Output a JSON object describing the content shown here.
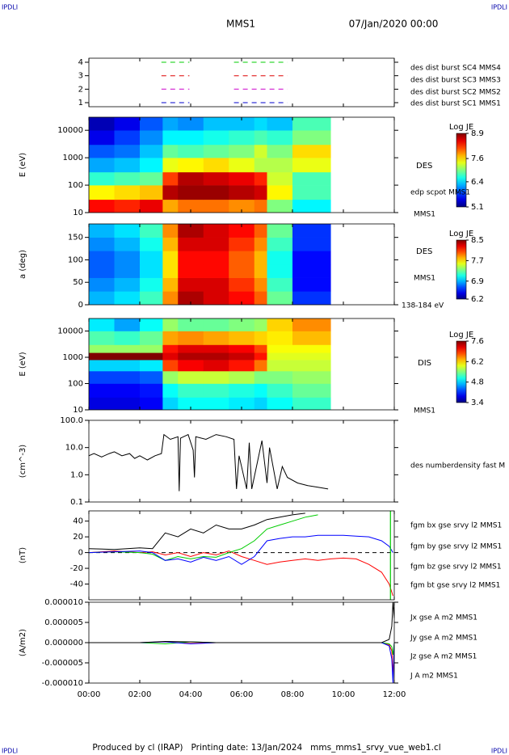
{
  "header": {
    "left_tag": "IPDLI",
    "right_tag": "IPDLI",
    "title": "MMS1",
    "date": "07/Jan/2020 00:00"
  },
  "footer": {
    "left_tag": "IPDLI",
    "right_tag": "IPDLI",
    "text": "Produced by cl (IRAP)   Printing date: 13/Jan/2024   mms_mms1_srvy_vue_web1.cl"
  },
  "chart_data": [
    {
      "type": "line",
      "dashed": true,
      "ylim": [
        0.7,
        4.3
      ],
      "yticks": [
        1,
        2,
        3,
        4
      ],
      "x": [
        2.85,
        3.95,
        4.5,
        5.7,
        7.8
      ],
      "series": [
        {
          "name": "des dist burst SC1 MMS1",
          "color": "#0000cc",
          "values": [
            1,
            1,
            null,
            1,
            1
          ]
        },
        {
          "name": "des dist burst SC2 MMS2",
          "color": "#cc00cc",
          "values": [
            2,
            2,
            null,
            2,
            2
          ]
        },
        {
          "name": "des dist burst SC3 MMS3",
          "color": "#dd0000",
          "values": [
            3,
            3,
            null,
            3,
            3
          ]
        },
        {
          "name": "des dist burst SC4 MMS4",
          "color": "#00cc00",
          "values": [
            4,
            4,
            null,
            4,
            4
          ]
        }
      ]
    },
    {
      "type": "heatmap",
      "ylabel": "E (eV)",
      "log_y": true,
      "ylim": [
        10,
        30000
      ],
      "yticks": [
        10,
        100,
        1000,
        10000
      ],
      "labels": [
        "DES",
        "edp scpot MMS1",
        "MMS1"
      ],
      "colorbar": {
        "title": "Log JE",
        "lim": [
          5.1,
          8.9
        ],
        "ticks": [
          5.1,
          6.4,
          7.6,
          8.9
        ]
      },
      "x_edges": [
        0,
        1,
        2,
        2.9,
        3.5,
        4.5,
        5.5,
        6.5,
        7,
        8,
        9.5
      ],
      "y_edges": [
        10,
        30,
        100,
        300,
        1000,
        3000,
        10000,
        30000
      ],
      "z": [
        [
          8.4,
          8.3,
          8.5,
          7.8,
          8.0,
          8.0,
          7.9,
          8.0,
          7.0,
          6.5
        ],
        [
          7.5,
          7.6,
          7.7,
          8.7,
          8.8,
          8.8,
          8.7,
          8.6,
          7.5,
          6.8
        ],
        [
          6.7,
          6.8,
          6.9,
          8.2,
          8.7,
          8.6,
          8.5,
          8.3,
          7.3,
          6.8
        ],
        [
          6.2,
          6.3,
          6.5,
          7.4,
          7.5,
          7.6,
          7.4,
          7.2,
          7.2,
          7.4
        ],
        [
          5.9,
          6.0,
          6.3,
          6.9,
          6.8,
          6.9,
          7.0,
          7.3,
          7.0,
          7.6
        ],
        [
          5.5,
          5.8,
          6.1,
          6.5,
          6.5,
          6.6,
          6.7,
          6.8,
          6.7,
          7.0
        ],
        [
          5.3,
          5.5,
          5.9,
          6.2,
          6.1,
          6.3,
          6.3,
          6.4,
          6.3,
          6.8
        ]
      ]
    },
    {
      "type": "heatmap",
      "ylabel": "a (deg)",
      "log_y": false,
      "ylim": [
        0,
        180
      ],
      "yticks": [
        0,
        50,
        100,
        150
      ],
      "labels": [
        "DES",
        "MMS1",
        "138-184 eV"
      ],
      "colorbar": {
        "title": "Log JE",
        "lim": [
          6.2,
          8.5
        ],
        "ticks": [
          6.2,
          6.9,
          7.7,
          8.5
        ]
      },
      "x_edges": [
        0,
        1,
        2,
        2.9,
        3.5,
        4.5,
        5.5,
        6.5,
        7,
        8,
        9.5
      ],
      "y_edges": [
        0,
        30,
        60,
        90,
        120,
        150,
        180
      ],
      "z": [
        [
          6.9,
          7.0,
          7.2,
          7.9,
          8.4,
          8.3,
          8.2,
          8.0,
          7.3,
          6.6
        ],
        [
          6.8,
          6.9,
          7.1,
          7.8,
          8.3,
          8.3,
          8.1,
          7.9,
          7.2,
          6.5
        ],
        [
          6.7,
          6.8,
          7.0,
          7.7,
          8.2,
          8.2,
          8.0,
          7.8,
          7.1,
          6.5
        ],
        [
          6.7,
          6.8,
          7.0,
          7.7,
          8.2,
          8.2,
          8.0,
          7.8,
          7.1,
          6.5
        ],
        [
          6.8,
          6.9,
          7.1,
          7.8,
          8.3,
          8.3,
          8.1,
          7.9,
          7.2,
          6.6
        ],
        [
          6.9,
          7.0,
          7.2,
          7.9,
          8.4,
          8.3,
          8.2,
          8.0,
          7.3,
          6.6
        ]
      ]
    },
    {
      "type": "heatmap",
      "ylabel": "E (eV)",
      "log_y": true,
      "ylim": [
        10,
        30000
      ],
      "yticks": [
        10,
        100,
        1000,
        10000
      ],
      "labels": [
        "DIS",
        "MMS1"
      ],
      "colorbar": {
        "title": "Log JE",
        "lim": [
          3.4,
          7.6
        ],
        "ticks": [
          3.4,
          4.8,
          6.2,
          7.6
        ]
      },
      "x_edges": [
        0,
        1,
        2,
        2.9,
        3.5,
        4.5,
        5.5,
        6.5,
        7,
        8,
        9.5
      ],
      "y_edges": [
        10,
        30,
        100,
        300,
        800,
        1500,
        3000,
        10000,
        30000
      ],
      "z": [
        [
          3.8,
          3.8,
          3.9,
          4.8,
          5.0,
          5.0,
          4.9,
          4.8,
          5.0,
          5.2
        ],
        [
          3.9,
          3.9,
          4.0,
          5.0,
          5.2,
          5.2,
          5.1,
          5.0,
          5.2,
          5.4
        ],
        [
          4.2,
          4.2,
          4.3,
          5.6,
          5.8,
          5.8,
          5.7,
          5.5,
          5.5,
          5.6
        ],
        [
          4.8,
          4.8,
          4.9,
          6.8,
          7.1,
          7.2,
          7.0,
          6.6,
          5.8,
          5.8
        ],
        [
          7.6,
          7.6,
          7.6,
          7.2,
          7.4,
          7.4,
          7.3,
          7.0,
          5.9,
          5.9
        ],
        [
          5.6,
          5.6,
          5.6,
          7.0,
          7.2,
          7.2,
          7.1,
          6.8,
          6.0,
          6.0
        ],
        [
          5.3,
          5.2,
          5.4,
          6.4,
          6.5,
          6.4,
          6.3,
          6.2,
          6.1,
          6.3
        ],
        [
          4.9,
          4.6,
          5.0,
          5.6,
          5.4,
          5.4,
          5.5,
          5.6,
          6.2,
          6.5
        ]
      ]
    },
    {
      "type": "line",
      "ylabel": "(cm^-3)",
      "log_y": true,
      "ylim": [
        0.1,
        100
      ],
      "yticks": [
        0.1,
        {
          "value": 1,
          "label": "1.0"
        },
        {
          "value": 10,
          "label": "10.0"
        },
        {
          "value": 100,
          "label": "100.0"
        }
      ],
      "x": [
        0,
        0.2,
        0.5,
        0.8,
        1.0,
        1.3,
        1.6,
        1.8,
        2.0,
        2.3,
        2.6,
        2.85,
        2.95,
        3.2,
        3.5,
        3.55,
        3.6,
        3.9,
        4.1,
        4.15,
        4.2,
        4.6,
        5.0,
        5.4,
        5.7,
        5.8,
        5.9,
        6.2,
        6.3,
        6.4,
        6.8,
        7.0,
        7.1,
        7.4,
        7.6,
        7.8,
        8.2,
        8.6,
        9.0,
        9.4
      ],
      "series": [
        {
          "name": "des numberdensity fast M",
          "color": "#000000",
          "values": [
            5,
            6,
            4.5,
            6,
            7,
            5,
            6,
            4,
            5,
            3.5,
            5,
            6,
            30,
            20,
            25,
            0.25,
            22,
            30,
            8,
            0.8,
            25,
            20,
            30,
            25,
            20,
            0.3,
            5,
            0.3,
            15,
            0.3,
            18,
            0.5,
            10,
            0.3,
            2,
            0.8,
            0.5,
            0.4,
            0.35,
            0.3
          ]
        }
      ]
    },
    {
      "type": "line",
      "ylabel": "(nT)",
      "zero_line": true,
      "ylim": [
        -60,
        53
      ],
      "yticks": [
        -40,
        -20,
        0,
        20,
        40
      ],
      "vline": {
        "x": 11.85,
        "color": "#00cc00"
      },
      "x": [
        0,
        1,
        2,
        2.5,
        3,
        3.5,
        4,
        4.5,
        5,
        5.5,
        6,
        6.5,
        7,
        7.5,
        8,
        8.5,
        9,
        9.5,
        10,
        10.5,
        11,
        11.5,
        11.8,
        11.95
      ],
      "series": [
        {
          "name": "fgm bx gse srvy l2 MMS1",
          "color": "#ff0000",
          "values": [
            0,
            2,
            0,
            1,
            -3,
            0,
            -5,
            0,
            -3,
            2,
            -5,
            -10,
            -15,
            -12,
            -10,
            -8,
            -10,
            -8,
            -7,
            -8,
            -15,
            -25,
            -40,
            -55
          ]
        },
        {
          "name": "fgm by gse srvy l2 MMS1",
          "color": "#00cc00",
          "values": [
            0,
            1,
            0,
            -2,
            -10,
            -5,
            -8,
            -5,
            -6,
            0,
            5,
            15,
            30,
            35,
            40,
            45,
            48,
            null,
            null,
            null,
            null,
            null,
            null,
            null
          ]
        },
        {
          "name": "fgm bz gse srvy l2 MMS1",
          "color": "#0000ff",
          "values": [
            0,
            1,
            2,
            0,
            -10,
            -8,
            -12,
            -6,
            -10,
            -5,
            -15,
            -5,
            15,
            18,
            20,
            20,
            22,
            22,
            22,
            21,
            20,
            15,
            8,
            0
          ]
        },
        {
          "name": "fgm bt gse srvy l2 MMS1",
          "color": "#000000",
          "values": [
            5,
            4,
            6,
            5,
            25,
            20,
            30,
            25,
            35,
            30,
            30,
            35,
            42,
            45,
            48,
            50,
            null,
            null,
            null,
            null,
            null,
            null,
            null,
            null
          ]
        }
      ]
    },
    {
      "type": "line",
      "ylabel": "(A/m2)",
      "ylim": [
        -1e-05,
        1e-05
      ],
      "yticks": [
        {
          "value": -1e-05,
          "label": "-0.000010"
        },
        -5e-06,
        {
          "value": 0,
          "label": "0.000000"
        },
        5e-06,
        {
          "value": 1e-05,
          "label": "0.000010"
        }
      ],
      "xlim": [
        0,
        12
      ],
      "xticks": [
        {
          "value": 0,
          "label": "00:00"
        },
        {
          "value": 2,
          "label": "02:00"
        },
        {
          "value": 4,
          "label": "04:00"
        },
        {
          "value": 6,
          "label": "06:00"
        },
        {
          "value": 8,
          "label": "08:00"
        },
        {
          "value": 10,
          "label": "10:00"
        },
        {
          "value": 12,
          "label": "12:00"
        }
      ],
      "x": [
        0,
        2,
        3,
        4,
        5,
        6,
        7,
        8,
        9,
        10,
        11,
        11.5,
        11.8,
        11.9,
        11.95,
        12
      ],
      "series": [
        {
          "name": "Jx gse A m2 MMS1",
          "color": "#ff0000",
          "values": [
            0,
            0,
            2e-07,
            -2e-07,
            0,
            0,
            0,
            0,
            0,
            0,
            0,
            0,
            -5e-07,
            -2e-06,
            -8e-06,
            0
          ]
        },
        {
          "name": "Jy gse A m2 MMS1",
          "color": "#00cc00",
          "values": [
            0,
            0,
            -3e-07,
            2e-07,
            0,
            0,
            0,
            0,
            0,
            0,
            0,
            0,
            -3e-07,
            -1e-06,
            -3e-06,
            0
          ]
        },
        {
          "name": "Jz gse A m2 MMS1",
          "color": "#0000ff",
          "values": [
            0,
            0,
            2e-07,
            -3e-07,
            0,
            0,
            0,
            0,
            0,
            0,
            0,
            0,
            -8e-07,
            -4e-06,
            -1e-05,
            0
          ]
        },
        {
          "name": "J A m2 MMS1",
          "color": "#000000",
          "values": [
            0,
            0,
            3e-07,
            2e-07,
            0,
            0,
            0,
            0,
            0,
            0,
            0,
            0,
            8e-07,
            4e-06,
            1e-05,
            6e-06
          ]
        }
      ]
    }
  ]
}
